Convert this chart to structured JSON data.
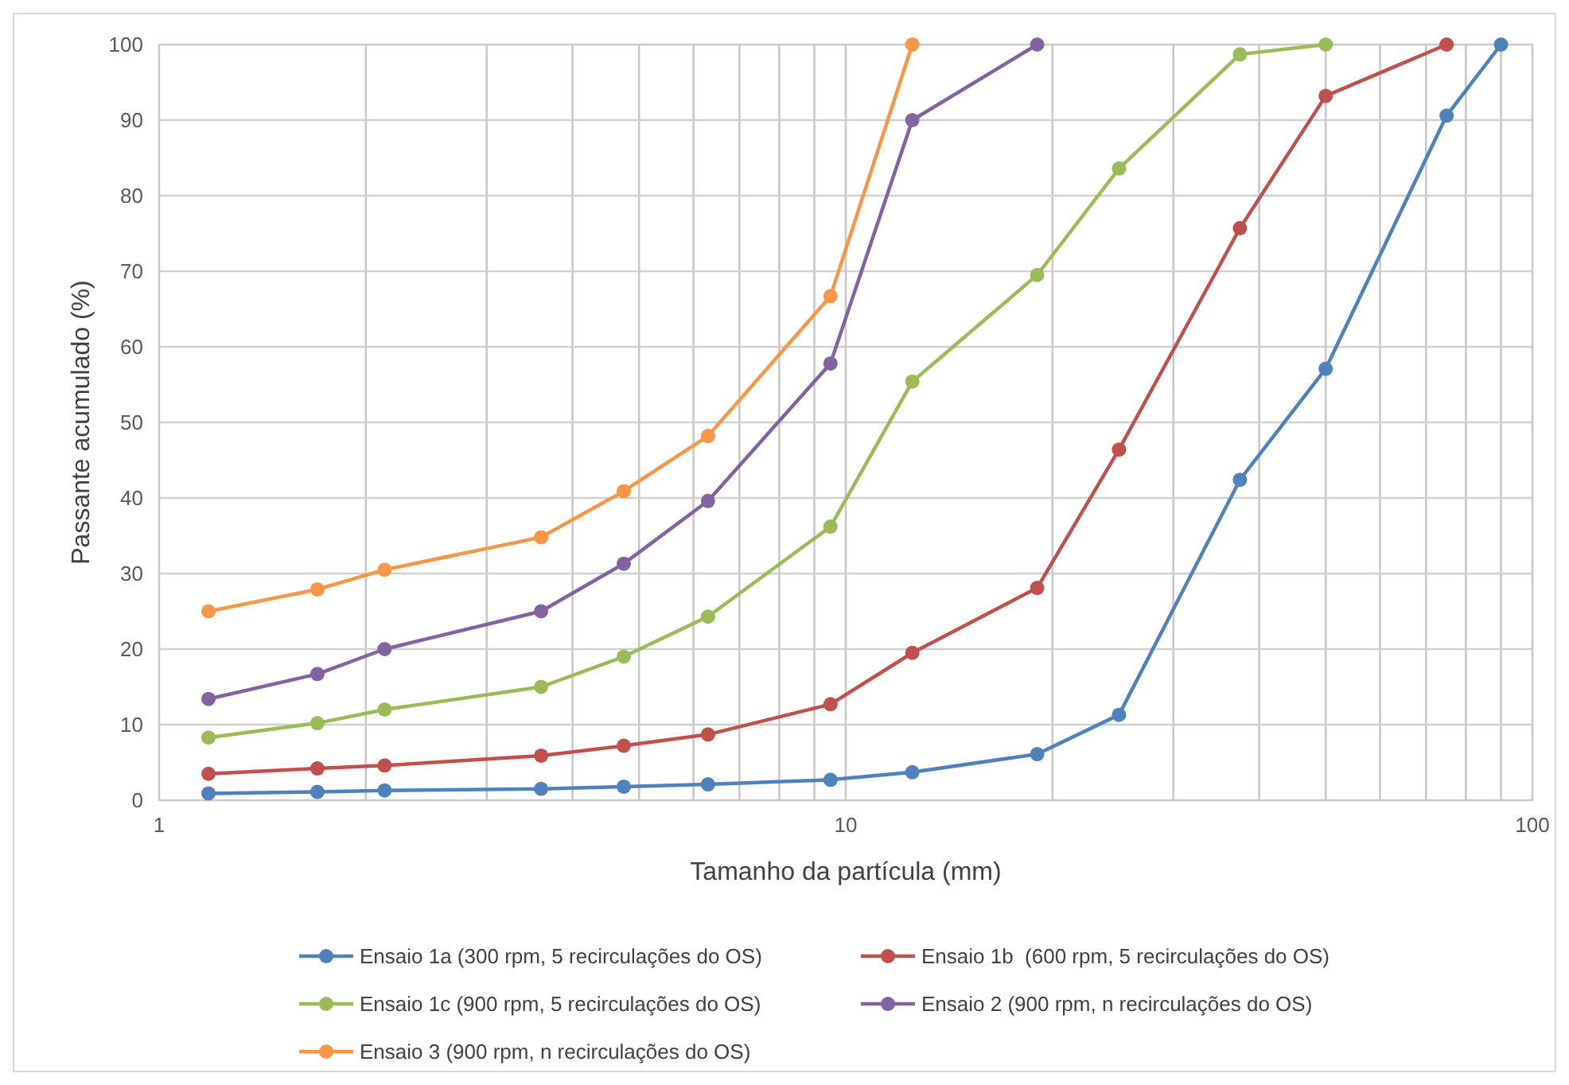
{
  "chart_data": {
    "type": "line",
    "xlabel": "Tamanho da partícula (mm)",
    "ylabel": "Passante acumulado (%)",
    "log": "x",
    "grid": true,
    "legend": "bottom",
    "marker": "circle",
    "line_style": "solid",
    "xlim": [
      1,
      100
    ],
    "xticks": [
      1,
      {
        "value": 2,
        "label": null
      },
      {
        "value": 3,
        "label": null
      },
      {
        "value": 4,
        "label": null
      },
      {
        "value": 5,
        "label": null
      },
      {
        "value": 6,
        "label": null
      },
      {
        "value": 7,
        "label": null
      },
      {
        "value": 8,
        "label": null
      },
      {
        "value": 9,
        "label": null
      },
      10,
      {
        "value": 20,
        "label": null
      },
      {
        "value": 30,
        "label": null
      },
      {
        "value": 40,
        "label": null
      },
      {
        "value": 50,
        "label": null
      },
      {
        "value": 60,
        "label": null
      },
      {
        "value": 70,
        "label": null
      },
      {
        "value": 80,
        "label": null
      },
      {
        "value": 90,
        "label": null
      },
      100
    ],
    "ylim": [
      0,
      100
    ],
    "yticks": [
      0,
      10,
      20,
      30,
      40,
      50,
      60,
      70,
      80,
      90,
      100
    ],
    "series": [
      {
        "name": "Ensaio 1a (300 rpm, 5 recirculações do OS)",
        "color": "#4f81bd",
        "x": [
          1.18,
          1.7,
          2.13,
          3.6,
          4.75,
          6.3,
          9.5,
          12.5,
          19,
          25,
          37.5,
          50,
          75,
          90
        ],
        "values": [
          0.9,
          1.1,
          1.3,
          1.5,
          1.8,
          2.1,
          2.7,
          3.7,
          6.1,
          11.3,
          42.4,
          57.1,
          90.6,
          100
        ]
      },
      {
        "name": "Ensaio 1b  (600 rpm, 5 recirculações do OS)",
        "color": "#c0504d",
        "x": [
          1.18,
          1.7,
          2.13,
          3.6,
          4.75,
          6.3,
          9.5,
          12.5,
          19,
          25,
          37.5,
          50,
          75
        ],
        "values": [
          3.5,
          4.2,
          4.6,
          5.9,
          7.2,
          8.7,
          12.7,
          19.5,
          28.1,
          46.4,
          75.7,
          93.2,
          100
        ]
      },
      {
        "name": "Ensaio 1c (900 rpm, 5 recirculações do OS)",
        "color": "#9bbb59",
        "x": [
          1.18,
          1.7,
          2.13,
          3.6,
          4.75,
          6.3,
          9.5,
          12.5,
          19,
          25,
          37.5,
          50
        ],
        "values": [
          8.3,
          10.2,
          12.0,
          15.0,
          19.0,
          24.3,
          36.2,
          55.4,
          69.5,
          83.6,
          98.7,
          100
        ]
      },
      {
        "name": "Ensaio 2 (900 rpm, n recirculações do OS)",
        "color": "#8064a2",
        "x": [
          1.18,
          1.7,
          2.13,
          3.6,
          4.75,
          6.3,
          9.5,
          12.5,
          19
        ],
        "values": [
          13.4,
          16.7,
          20.0,
          25.0,
          31.3,
          39.6,
          57.8,
          90.0,
          100
        ]
      },
      {
        "name": "Ensaio 3 (900 rpm, n recirculações do OS)",
        "color": "#f79646",
        "x": [
          1.18,
          1.7,
          2.13,
          3.6,
          4.75,
          6.3,
          9.5,
          12.5
        ],
        "values": [
          25.0,
          27.9,
          30.5,
          34.8,
          40.9,
          48.2,
          66.7,
          100
        ]
      }
    ]
  }
}
